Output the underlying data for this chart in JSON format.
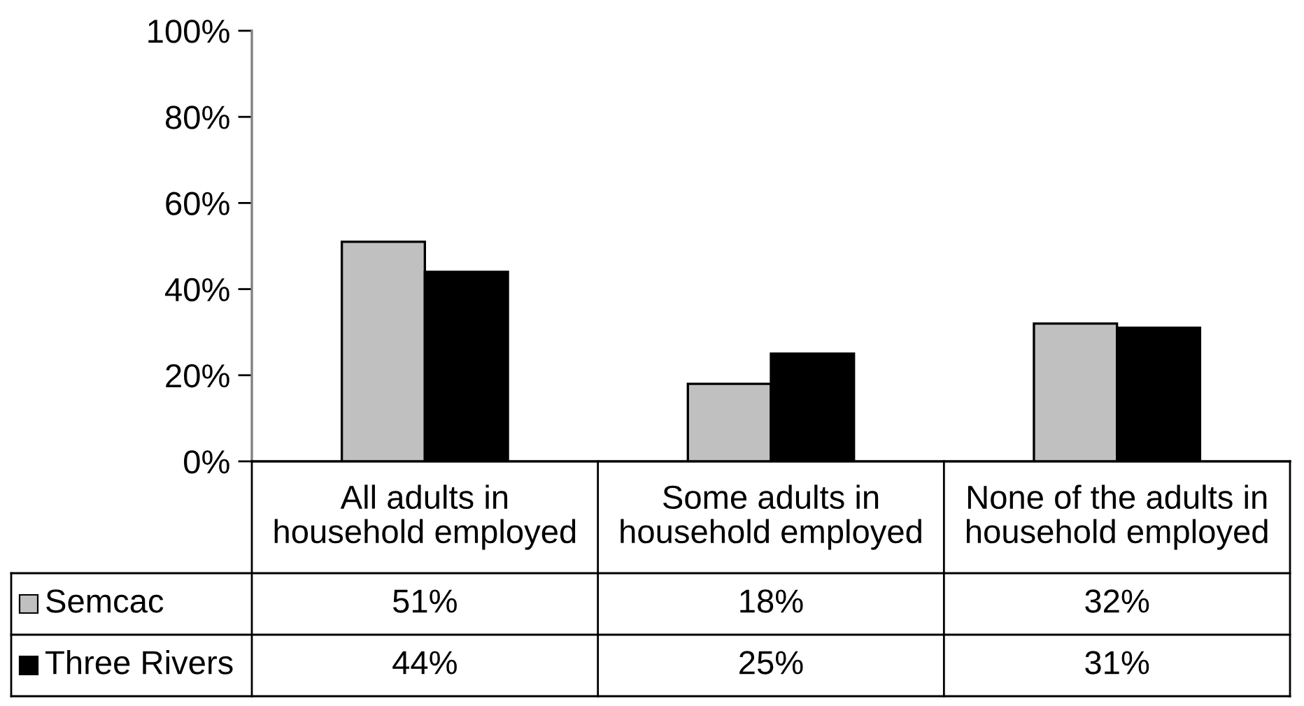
{
  "chart_data": {
    "type": "bar",
    "categories": [
      "All adults in\nhousehold employed",
      "Some adults in\nhousehold employed",
      "None of the adults in\nhousehold employed"
    ],
    "series": [
      {
        "name": "Semcac",
        "color": "#c0c0c0",
        "values": [
          51,
          18,
          32
        ],
        "value_labels": [
          "51%",
          "18%",
          "32%"
        ]
      },
      {
        "name": "Three Rivers",
        "color": "#000000",
        "values": [
          44,
          25,
          31
        ],
        "value_labels": [
          "44%",
          "25%",
          "31%"
        ]
      }
    ],
    "ylim": [
      0,
      100
    ],
    "yticks": [
      {
        "value": 0,
        "label": "0%"
      },
      {
        "value": 20,
        "label": "20%"
      },
      {
        "value": 40,
        "label": "40%"
      },
      {
        "value": 60,
        "label": "60%"
      },
      {
        "value": 80,
        "label": "80%"
      },
      {
        "value": 100,
        "label": "100%"
      }
    ],
    "legend": "bottom"
  }
}
